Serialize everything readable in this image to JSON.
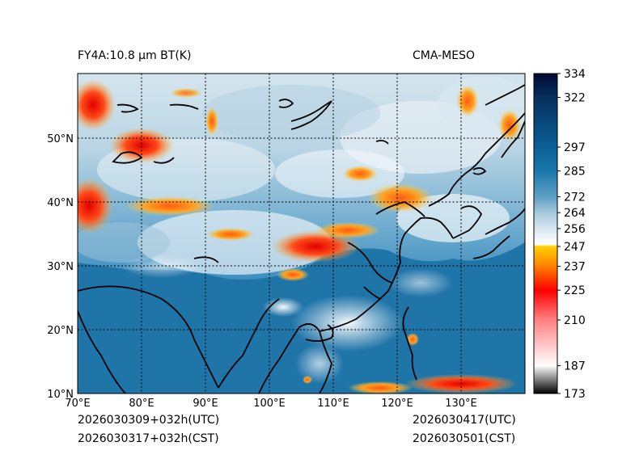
{
  "header": {
    "left_title": "FY4A:10.8 µm BT(K)",
    "right_title": "CMA-MESO"
  },
  "footer": {
    "init_utc": "2026030309+032h(UTC)",
    "init_cst": "2026030317+032h(CST)",
    "valid_utc": "2026030417(UTC)",
    "valid_cst": "2026030501(CST)"
  },
  "map": {
    "lon_range": [
      70,
      140
    ],
    "lat_range": [
      10,
      60
    ],
    "lon_ticks": [
      "70°E",
      "80°E",
      "90°E",
      "100°E",
      "110°E",
      "120°E",
      "130°E"
    ],
    "lat_ticks": [
      "10°N",
      "20°N",
      "30°N",
      "40°N",
      "50°N"
    ]
  },
  "colorbar": {
    "range": [
      173,
      334
    ],
    "tick_values": [
      173,
      187,
      210,
      225,
      237,
      247,
      256,
      264,
      272,
      285,
      297,
      322,
      334
    ],
    "tick_labels": [
      "173",
      "187",
      "210",
      "225",
      "237",
      "247",
      "256",
      "264",
      "272",
      "285",
      "297",
      "322",
      "334"
    ],
    "stops": [
      {
        "value": 173,
        "color": "#000000"
      },
      {
        "value": 187,
        "color": "#ffffff"
      },
      {
        "value": 210,
        "color": "#ff8080"
      },
      {
        "value": 225,
        "color": "#ff0000"
      },
      {
        "value": 237,
        "color": "#ff8000"
      },
      {
        "value": 247,
        "color": "#ffd000"
      },
      {
        "value": 248,
        "color": "#ffffff"
      },
      {
        "value": 256,
        "color": "#d6e6f0"
      },
      {
        "value": 264,
        "color": "#a6c8dc"
      },
      {
        "value": 272,
        "color": "#5e9fc4"
      },
      {
        "value": 285,
        "color": "#1a78ac"
      },
      {
        "value": 297,
        "color": "#0a5f96"
      },
      {
        "value": 322,
        "color": "#05305e"
      },
      {
        "value": 334,
        "color": "#000833"
      }
    ]
  },
  "colors": {
    "ocean": "#1f74a8",
    "land_cold": "#c6dce8",
    "cloud_orange": "#ff9a1a",
    "cloud_red": "#ff3010",
    "coast": "#000000"
  }
}
